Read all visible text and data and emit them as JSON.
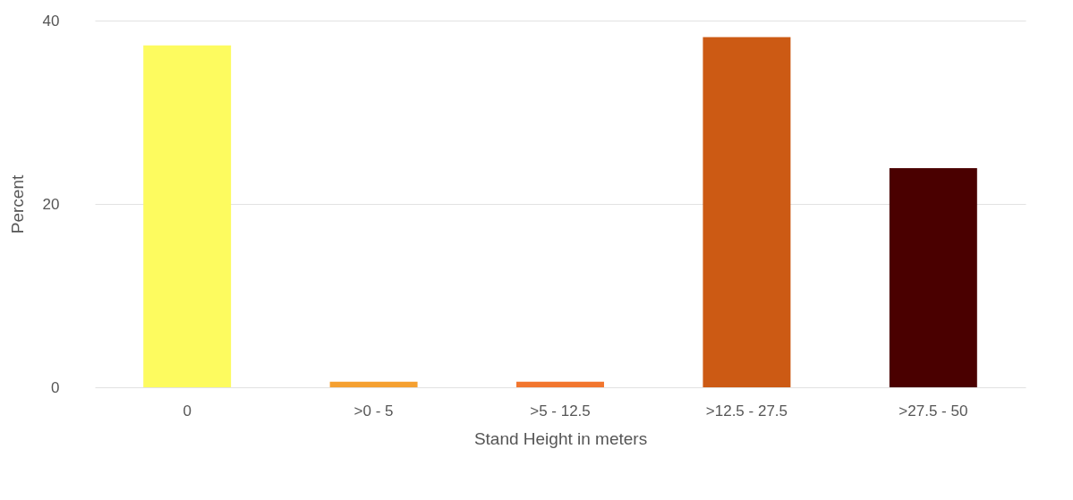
{
  "chart_data": {
    "type": "bar",
    "xlabel": "Stand Height in meters",
    "ylabel": "Percent",
    "categories": [
      "0",
      ">0 - 5",
      ">5 - 12.5",
      ">12.5 - 27.5",
      ">27.5 - 50"
    ],
    "values": [
      37.3,
      0.6,
      0.6,
      38.2,
      23.9
    ],
    "colors": [
      "#fdfb5f",
      "#f5a030",
      "#f2762e",
      "#cc5a14",
      "#4a0000"
    ],
    "ylim": [
      0,
      40
    ],
    "yticks": [
      0,
      20,
      40
    ],
    "grid": "y",
    "legend": false
  }
}
